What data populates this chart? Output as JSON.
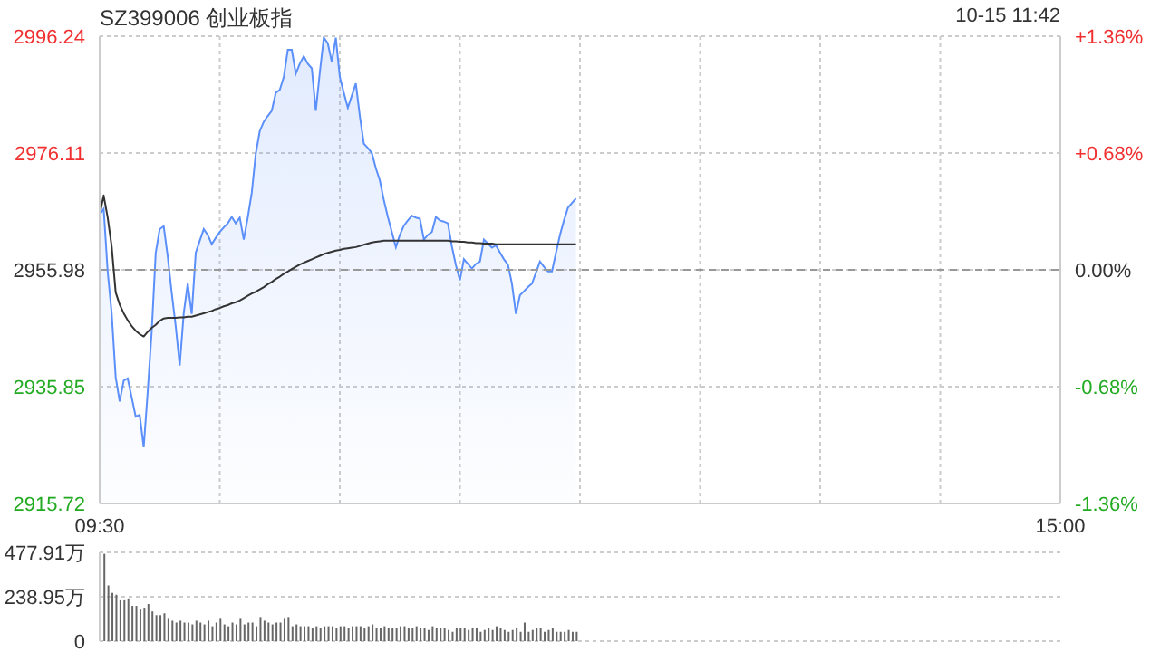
{
  "chart_data": [
    {
      "type": "area",
      "title": "SZ399006 创业板指",
      "annotations": [
        "10-15 11:42"
      ],
      "categories": [
        "09:30",
        null,
        null,
        null,
        null,
        null,
        null,
        null,
        null,
        null,
        null,
        null,
        null,
        null,
        null,
        null,
        null,
        null,
        null,
        null,
        null,
        null,
        null,
        null,
        null,
        null,
        null,
        null,
        null,
        null,
        null,
        null,
        null,
        null,
        null,
        null,
        null,
        null,
        null,
        null,
        null,
        null,
        null,
        null,
        null,
        null,
        null,
        null,
        null,
        null,
        null,
        null,
        null,
        null,
        null,
        null,
        null,
        null,
        null,
        null,
        null,
        null,
        null,
        null,
        null,
        null,
        null,
        null,
        null,
        null,
        null,
        null,
        null,
        null,
        null,
        null,
        null,
        null,
        null,
        null,
        null,
        null,
        null,
        null,
        null,
        null,
        null,
        null,
        null,
        null,
        null,
        null,
        null,
        null,
        null,
        null,
        null,
        null,
        null,
        null,
        null,
        null,
        null,
        null,
        null,
        null,
        null,
        null,
        null,
        null,
        null,
        null,
        null,
        null,
        null,
        null,
        null,
        null,
        null,
        null,
        null,
        null,
        null,
        null,
        null,
        null,
        null,
        null,
        null,
        null,
        null,
        null,
        null,
        null,
        null,
        null,
        null,
        null,
        null,
        null,
        null,
        null,
        null,
        null,
        null,
        null,
        null,
        null,
        null,
        null,
        null,
        null,
        null,
        null,
        null,
        null,
        null,
        null,
        null,
        null,
        null,
        null,
        null,
        null,
        null,
        null,
        null,
        null,
        null,
        null,
        null,
        null,
        null,
        null,
        null,
        null,
        null,
        null,
        null,
        null,
        null,
        null,
        null,
        null,
        null,
        null,
        null,
        null,
        null,
        null,
        null,
        null,
        null,
        null,
        null,
        null,
        null,
        null,
        null,
        null,
        null,
        null,
        null,
        null,
        null,
        null,
        null,
        null,
        null,
        null,
        null,
        null,
        null,
        null,
        null,
        null,
        null,
        null,
        null,
        null,
        null,
        null,
        null,
        null,
        null,
        null,
        null,
        null,
        null,
        null,
        null,
        null,
        null,
        null,
        null,
        null,
        null,
        null,
        null,
        null,
        "15:00"
      ],
      "ylim": [
        2915.72,
        2996.24
      ],
      "yticks": [
        2915.72,
        2935.85,
        2955.98,
        2976.11,
        2996.24
      ],
      "y2lim": [
        -1.36,
        1.36
      ],
      "y2ticks": [
        {
          "value": -1.36,
          "label": "-1.36%"
        },
        {
          "value": -0.68,
          "label": "-0.68%"
        },
        {
          "value": 0,
          "label": "0.00%"
        },
        {
          "value": 0.68,
          "label": "+0.68%"
        },
        {
          "value": 1.36,
          "label": "+1.36%"
        }
      ],
      "grid": true,
      "ref_lines": [
        {
          "axis": "y",
          "value": 2955.98,
          "color": "#999999",
          "line_style": "dashed"
        }
      ],
      "series": [
        {
          "color": "#5b8ff9",
          "values": [
            2965.5,
            2966.5,
            2955.7,
            2948.5,
            2937.5,
            2933.3,
            2936.9,
            2937.3,
            2934.0,
            2930.7,
            2931.0,
            2925.4,
            2935.0,
            2945.4,
            2958.9,
            2963.0,
            2963.5,
            2958.3,
            2952.0,
            2946.3,
            2939.5,
            2948.5,
            2953.6,
            2948.4,
            2958.9,
            2961.0,
            2963.0,
            2962.0,
            2960.4,
            2961.5,
            2962.5,
            2963.3,
            2964.0,
            2965.1,
            2964.0,
            2965.0,
            2961.2,
            2965.0,
            2969.3,
            2976.0,
            2979.9,
            2981.5,
            2982.5,
            2983.4,
            2986.5,
            2987.0,
            2989.2,
            2993.9,
            2993.9,
            2989.8,
            2991.5,
            2992.8,
            2991.5,
            2990.7,
            2983.4,
            2990.0,
            2996.0,
            2995.0,
            2991.8,
            2996.0,
            2989.2,
            2986.5,
            2983.9,
            2986.0,
            2988.1,
            2982.5,
            2977.7,
            2977.0,
            2976.1,
            2973.5,
            2971.4,
            2968.0,
            2965.1,
            2962.5,
            2959.9,
            2962.0,
            2963.6,
            2964.5,
            2965.3,
            2965.0,
            2964.8,
            2961.2,
            2962.0,
            2962.5,
            2965.1,
            2964.5,
            2964.3,
            2964.0,
            2960.0,
            2956.8,
            2954.2,
            2957.8,
            2957.0,
            2956.2,
            2957.0,
            2957.4,
            2961.2,
            2960.5,
            2959.8,
            2960.2,
            2959.0,
            2957.8,
            2956.9,
            2953.6,
            2948.4,
            2951.6,
            2952.3,
            2953.0,
            2953.6,
            2955.5,
            2957.4,
            2956.5,
            2955.7,
            2955.7,
            2958.9,
            2962.0,
            2964.5,
            2966.7,
            2967.5,
            2968.3,
            null,
            null,
            null,
            null,
            null,
            null,
            null,
            null,
            null,
            null,
            null,
            null,
            null,
            null,
            null,
            null,
            null,
            null,
            null,
            null,
            null,
            null,
            null,
            null,
            null,
            null,
            null,
            null,
            null,
            null,
            null,
            null,
            null,
            null,
            null,
            null,
            null,
            null,
            null,
            null,
            null,
            null,
            null,
            null,
            null,
            null,
            null,
            null,
            null,
            null,
            null,
            null,
            null,
            null,
            null,
            null,
            null,
            null,
            null,
            null,
            null,
            null,
            null,
            null,
            null,
            null,
            null,
            null,
            null,
            null,
            null,
            null,
            null,
            null,
            null,
            null,
            null,
            null,
            null,
            null,
            null,
            null,
            null,
            null,
            null,
            null,
            null,
            null,
            null,
            null,
            null,
            null,
            null,
            null,
            null,
            null,
            null,
            null,
            null,
            null,
            null,
            null,
            null,
            null,
            null,
            null,
            null,
            null,
            null,
            null,
            null,
            null,
            null,
            null,
            null,
            null,
            null,
            null,
            null,
            null,
            null
          ]
        },
        {
          "type": "line",
          "color": "#333333",
          "values": [
            2965.5,
            2968.8,
            2965.0,
            2960.0,
            2952.1,
            2950.0,
            2948.5,
            2947.3,
            2946.3,
            2945.5,
            2944.9,
            2944.5,
            2945.3,
            2946.0,
            2946.5,
            2947.2,
            2947.6,
            2947.7,
            2947.7,
            2947.7,
            2947.8,
            2947.8,
            2947.9,
            2947.9,
            2948.1,
            2948.3,
            2948.5,
            2948.7,
            2948.9,
            2949.2,
            2949.4,
            2949.7,
            2949.9,
            2950.2,
            2950.4,
            2950.7,
            2951.1,
            2951.5,
            2951.9,
            2952.2,
            2952.6,
            2953.0,
            2953.5,
            2953.9,
            2954.4,
            2954.8,
            2955.3,
            2955.7,
            2956.1,
            2956.5,
            2956.9,
            2957.2,
            2957.5,
            2957.8,
            2958.1,
            2958.4,
            2958.7,
            2958.9,
            2959.1,
            2959.3,
            2959.4,
            2959.6,
            2959.7,
            2959.8,
            2959.9,
            2960.1,
            2960.3,
            2960.5,
            2960.7,
            2960.8,
            2960.9,
            2961.0,
            2961.0,
            2961.0,
            2961.0,
            2961.0,
            2961.0,
            2961.0,
            2961.0,
            2961.0,
            2961.0,
            2961.0,
            2961.0,
            2961.0,
            2961.0,
            2961.0,
            2961.0,
            2961.0,
            2960.9,
            2960.9,
            2960.8,
            2960.8,
            2960.7,
            2960.7,
            2960.6,
            2960.6,
            2960.5,
            2960.5,
            2960.5,
            2960.4,
            2960.4,
            2960.4,
            2960.4,
            2960.4,
            2960.4,
            2960.4,
            2960.4,
            2960.4,
            2960.4,
            2960.4,
            2960.4,
            2960.4,
            2960.4,
            2960.4,
            2960.4,
            2960.4,
            2960.4,
            2960.4,
            2960.4,
            2960.4,
            null,
            null,
            null,
            null,
            null,
            null,
            null,
            null,
            null,
            null,
            null,
            null,
            null,
            null,
            null,
            null,
            null,
            null,
            null,
            null,
            null,
            null,
            null,
            null,
            null,
            null,
            null,
            null,
            null,
            null,
            null,
            null,
            null,
            null,
            null,
            null,
            null,
            null,
            null,
            null,
            null,
            null,
            null,
            null,
            null,
            null,
            null,
            null,
            null,
            null,
            null,
            null,
            null,
            null,
            null,
            null,
            null,
            null,
            null,
            null,
            null,
            null,
            null,
            null,
            null,
            null,
            null,
            null,
            null,
            null,
            null,
            null,
            null,
            null,
            null,
            null,
            null,
            null,
            null,
            null,
            null,
            null,
            null,
            null,
            null,
            null,
            null,
            null,
            null,
            null,
            null,
            null,
            null,
            null,
            null,
            null,
            null,
            null,
            null,
            null,
            null,
            null,
            null,
            null,
            null,
            null,
            null,
            null,
            null,
            null,
            null,
            null,
            null,
            null,
            null,
            null,
            null,
            null,
            null,
            null,
            null
          ]
        }
      ]
    },
    {
      "type": "bar",
      "tick_labels": "y",
      "categories": [
        null,
        null,
        null,
        null,
        null,
        null,
        null,
        null,
        null,
        null,
        null,
        null,
        null,
        null,
        null,
        null,
        null,
        null,
        null,
        null,
        null,
        null,
        null,
        null,
        null,
        null,
        null,
        null,
        null,
        null,
        null,
        null,
        null,
        null,
        null,
        null,
        null,
        null,
        null,
        null,
        null,
        null,
        null,
        null,
        null,
        null,
        null,
        null,
        null,
        null,
        null,
        null,
        null,
        null,
        null,
        null,
        null,
        null,
        null,
        null,
        null,
        null,
        null,
        null,
        null,
        null,
        null,
        null,
        null,
        null,
        null,
        null,
        null,
        null,
        null,
        null,
        null,
        null,
        null,
        null,
        null,
        null,
        null,
        null,
        null,
        null,
        null,
        null,
        null,
        null,
        null,
        null,
        null,
        null,
        null,
        null,
        null,
        null,
        null,
        null,
        null,
        null,
        null,
        null,
        null,
        null,
        null,
        null,
        null,
        null,
        null,
        null,
        null,
        null,
        null,
        null,
        null,
        null,
        null,
        null,
        null,
        null,
        null,
        null,
        null,
        null,
        null,
        null,
        null,
        null,
        null,
        null,
        null,
        null,
        null,
        null,
        null,
        null,
        null,
        null,
        null,
        null,
        null,
        null,
        null,
        null,
        null,
        null,
        null,
        null,
        null,
        null,
        null,
        null,
        null,
        null,
        null,
        null,
        null,
        null,
        null,
        null,
        null,
        null,
        null,
        null,
        null,
        null,
        null,
        null,
        null,
        null,
        null,
        null,
        null,
        null,
        null,
        null,
        null,
        null,
        null,
        null,
        null,
        null,
        null,
        null,
        null,
        null,
        null,
        null,
        null,
        null,
        null,
        null,
        null,
        null,
        null,
        null,
        null,
        null,
        null,
        null,
        null,
        null,
        null,
        null,
        null,
        null,
        null,
        null,
        null,
        null,
        null,
        null,
        null,
        null,
        null,
        null,
        null,
        null,
        null,
        null,
        null,
        null,
        null,
        null,
        null,
        null,
        null,
        null,
        null,
        null,
        null,
        null,
        null,
        null,
        null,
        null,
        null,
        null,
        null
      ],
      "ylim": [
        0,
        477.91
      ],
      "yticks": [
        0,
        {
          "value": 238.95,
          "label": "238.95万"
        },
        {
          "value": 477.91,
          "label": "477.91万"
        }
      ],
      "grid": "y",
      "series": [
        {
          "color": "#666666",
          "values": [
            110,
            470,
            300,
            260,
            250,
            220,
            220,
            230,
            190,
            190,
            170,
            180,
            200,
            160,
            140,
            140,
            150,
            120,
            110,
            100,
            110,
            100,
            100,
            90,
            110,
            100,
            90,
            110,
            80,
            100,
            120,
            90,
            80,
            100,
            90,
            120,
            90,
            100,
            100,
            80,
            130,
            110,
            100,
            90,
            100,
            100,
            120,
            130,
            80,
            90,
            80,
            80,
            80,
            70,
            80,
            70,
            80,
            80,
            80,
            70,
            80,
            80,
            70,
            80,
            80,
            80,
            70,
            80,
            90,
            70,
            70,
            80,
            70,
            70,
            70,
            80,
            80,
            70,
            70,
            80,
            70,
            70,
            60,
            80,
            70,
            70,
            70,
            60,
            50,
            70,
            70,
            70,
            60,
            70,
            70,
            50,
            60,
            70,
            60,
            80,
            70,
            60,
            50,
            60,
            70,
            50,
            100,
            50,
            60,
            70,
            70,
            50,
            60,
            70,
            50,
            50,
            50,
            60,
            50,
            50,
            null,
            null,
            null,
            null,
            null,
            null,
            null,
            null,
            null,
            null,
            null,
            null,
            null,
            null,
            null,
            null,
            null,
            null,
            null,
            null,
            null,
            null,
            null,
            null,
            null,
            null,
            null,
            null,
            null,
            null,
            null,
            null,
            null,
            null,
            null,
            null,
            null,
            null,
            null,
            null,
            null,
            null,
            null,
            null,
            null,
            null,
            null,
            null,
            null,
            null,
            null,
            null,
            null,
            null,
            null,
            null,
            null,
            null,
            null,
            null,
            null,
            null,
            null,
            null,
            null,
            null,
            null,
            null,
            null,
            null,
            null,
            null,
            null,
            null,
            null,
            null,
            null,
            null,
            null,
            null,
            null,
            null,
            null,
            null,
            null,
            null,
            null,
            null,
            null,
            null,
            null,
            null,
            null,
            null,
            null,
            null,
            null,
            null,
            null,
            null,
            null,
            null,
            null,
            null,
            null,
            null,
            null,
            null,
            null,
            null,
            null,
            null,
            null,
            null,
            null,
            null,
            null,
            null,
            null,
            null,
            null
          ]
        }
      ]
    }
  ]
}
